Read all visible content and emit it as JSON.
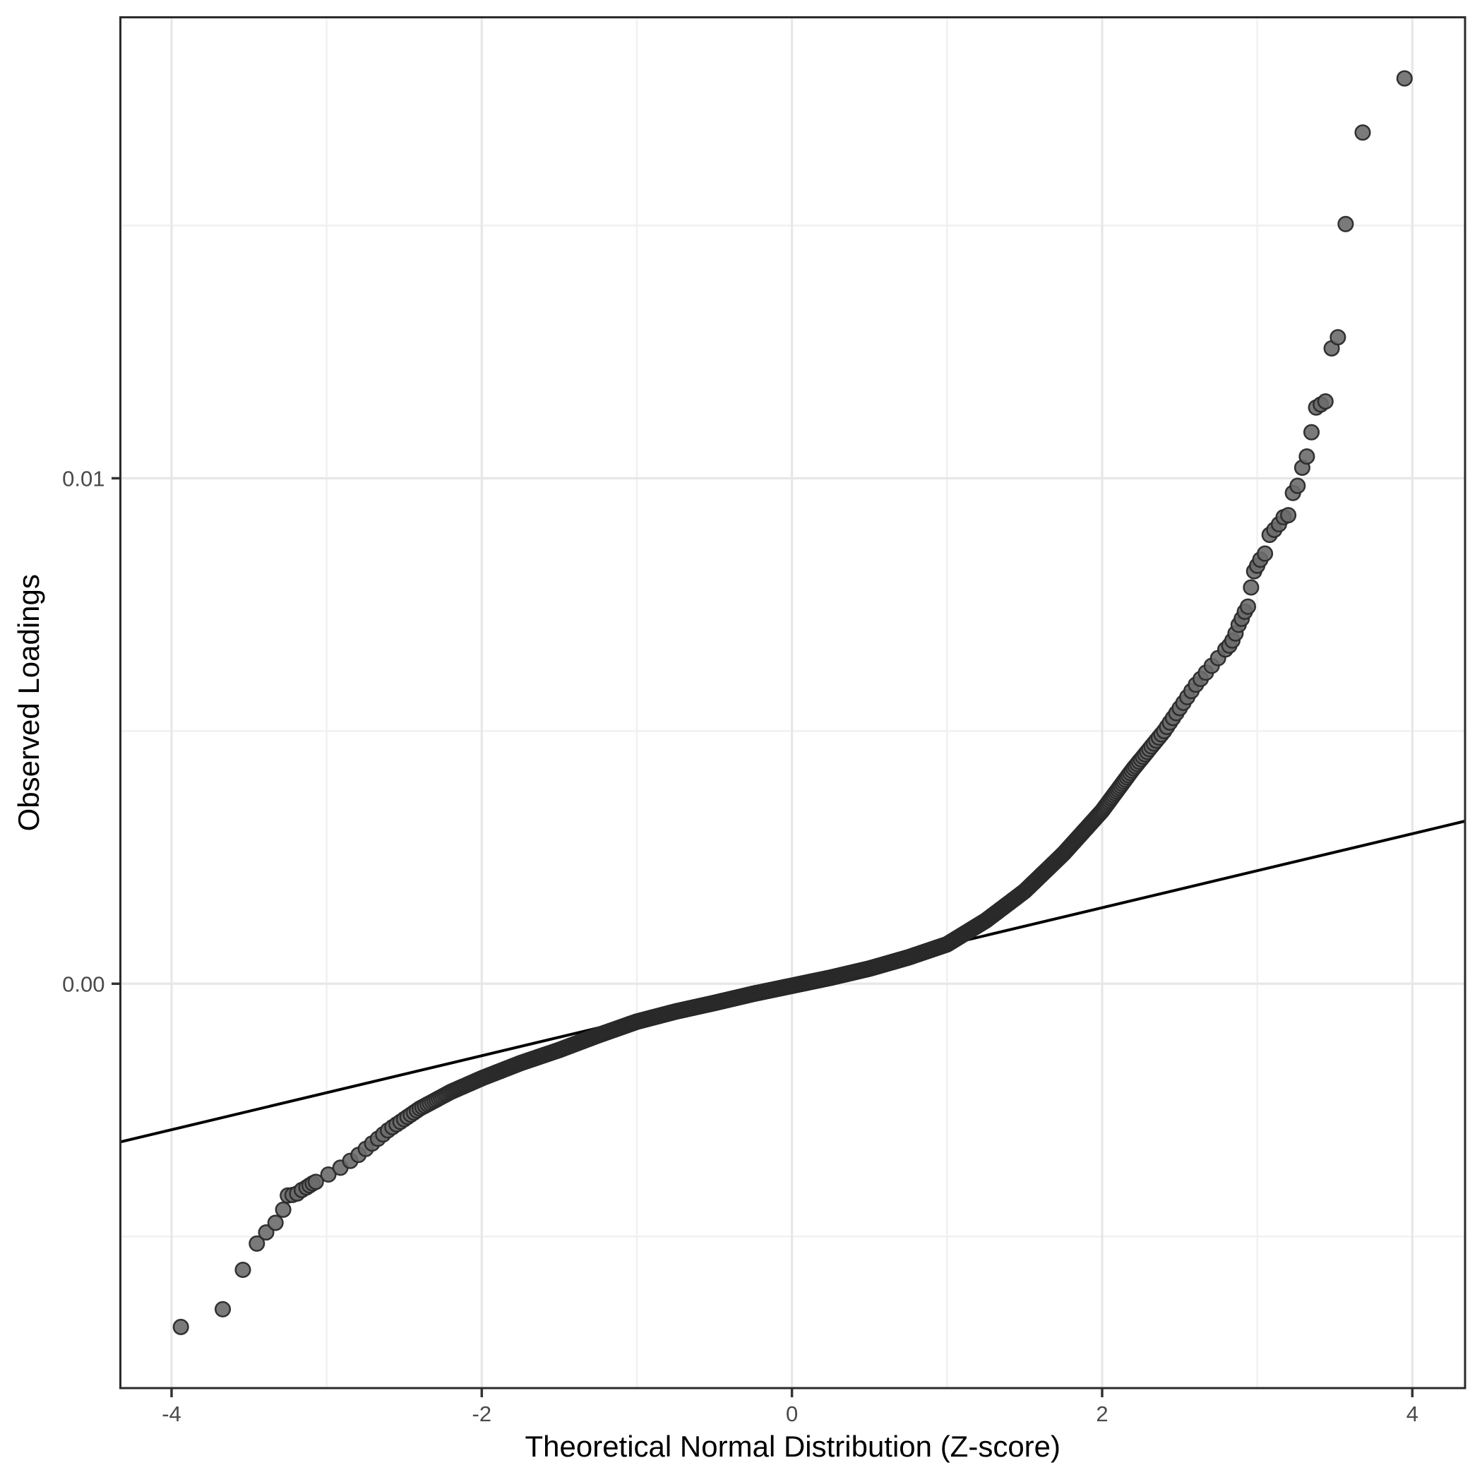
{
  "chart_data": {
    "type": "scatter",
    "subtype": "qq-plot",
    "title": "",
    "xlabel": "Theoretical Normal Distribution (Z-score)",
    "ylabel": "Observed Loadings",
    "xlim": [
      -4.33,
      4.34
    ],
    "ylim": [
      -0.008,
      0.01912
    ],
    "grid": true,
    "legend_position": "none",
    "x_major_ticks": [
      -4,
      -2,
      0,
      2,
      4
    ],
    "x_major_tick_labels": [
      "-4",
      "-2",
      "0",
      "2",
      "4"
    ],
    "x_minor_ticks": [
      -3,
      -1,
      1,
      3
    ],
    "y_major_ticks": [
      0.0,
      0.01
    ],
    "y_major_tick_labels": [
      "0.00",
      "0.01"
    ],
    "y_minor_ticks": [
      -0.005,
      0.005,
      0.015
    ],
    "reference_line": {
      "slope": 0.000732,
      "intercept": 4e-05
    },
    "series": [
      {
        "name": "observed-loadings-quantiles",
        "band": {
          "n_quantile_points": 2500,
          "z_range": [
            -3.06,
            2.81
          ],
          "centerline": [
            [
              -3.05,
              -0.00388
            ],
            [
              -2.9,
              -0.00362
            ],
            [
              -2.8,
              -0.0034
            ],
            [
              -2.6,
              -0.00289
            ],
            [
              -2.4,
              -0.00247
            ],
            [
              -2.2,
              -0.00214
            ],
            [
              -2.0,
              -0.00187
            ],
            [
              -1.75,
              -0.00157
            ],
            [
              -1.5,
              -0.00131
            ],
            [
              -1.25,
              -0.00102
            ],
            [
              -1.0,
              -0.00075
            ],
            [
              -0.75,
              -0.00055
            ],
            [
              -0.5,
              -0.00038
            ],
            [
              -0.25,
              -0.0002
            ],
            [
              0.0,
              -4e-05
            ],
            [
              0.25,
              0.00012
            ],
            [
              0.5,
              0.0003
            ],
            [
              0.75,
              0.00052
            ],
            [
              1.0,
              0.00078
            ],
            [
              1.25,
              0.00125
            ],
            [
              1.5,
              0.00183
            ],
            [
              1.75,
              0.00257
            ],
            [
              2.0,
              0.00342
            ],
            [
              2.2,
              0.00425
            ],
            [
              2.4,
              0.005
            ],
            [
              2.6,
              0.0059
            ],
            [
              2.81,
              0.00667
            ]
          ]
        },
        "lower_tail_points": [
          [
            -3.94,
            -0.00679
          ],
          [
            -3.67,
            -0.00644
          ],
          [
            -3.54,
            -0.00566
          ],
          [
            -3.45,
            -0.00514
          ],
          [
            -3.39,
            -0.00492
          ],
          [
            -3.33,
            -0.00473
          ],
          [
            -3.28,
            -0.00447
          ],
          [
            -3.25,
            -0.00419
          ],
          [
            -3.22,
            -0.00418
          ],
          [
            -3.19,
            -0.00415
          ],
          [
            -3.16,
            -0.00408
          ],
          [
            -3.13,
            -0.00403
          ],
          [
            -3.11,
            -0.00399
          ],
          [
            -3.09,
            -0.00395
          ],
          [
            -3.07,
            -0.00392
          ]
        ],
        "upper_tail_points": [
          [
            2.82,
            0.00669
          ],
          [
            2.84,
            0.00679
          ],
          [
            2.86,
            0.00693
          ],
          [
            2.88,
            0.0071
          ],
          [
            2.9,
            0.00722
          ],
          [
            2.92,
            0.00736
          ],
          [
            2.94,
            0.00746
          ],
          [
            2.96,
            0.00784
          ],
          [
            2.98,
            0.00816
          ],
          [
            3.0,
            0.00827
          ],
          [
            3.02,
            0.00839
          ],
          [
            3.05,
            0.00851
          ],
          [
            3.08,
            0.00888
          ],
          [
            3.11,
            0.00898
          ],
          [
            3.14,
            0.00909
          ],
          [
            3.17,
            0.00923
          ],
          [
            3.2,
            0.00927
          ],
          [
            3.23,
            0.00971
          ],
          [
            3.26,
            0.00985
          ],
          [
            3.29,
            0.01021
          ],
          [
            3.32,
            0.01043
          ],
          [
            3.35,
            0.01091
          ],
          [
            3.38,
            0.0114
          ],
          [
            3.41,
            0.01146
          ],
          [
            3.44,
            0.01152
          ],
          [
            3.48,
            0.01257
          ],
          [
            3.52,
            0.01279
          ],
          [
            3.57,
            0.01503
          ],
          [
            3.68,
            0.01684
          ],
          [
            3.95,
            0.01791
          ]
        ]
      }
    ]
  },
  "colors": {
    "background": "#FFFFFF",
    "panel_background": "#FFFFFF",
    "panel_border": "#2B2B2B",
    "grid_major": "#E7E7E7",
    "grid_minor": "#F1F1F1",
    "tick_mark": "#333333",
    "tick_label": "#4A4A4A",
    "axis_title": "#000000",
    "point_fill": "#6B6B6B",
    "point_stroke": "#2A2A2A",
    "reference_line": "#000000"
  }
}
